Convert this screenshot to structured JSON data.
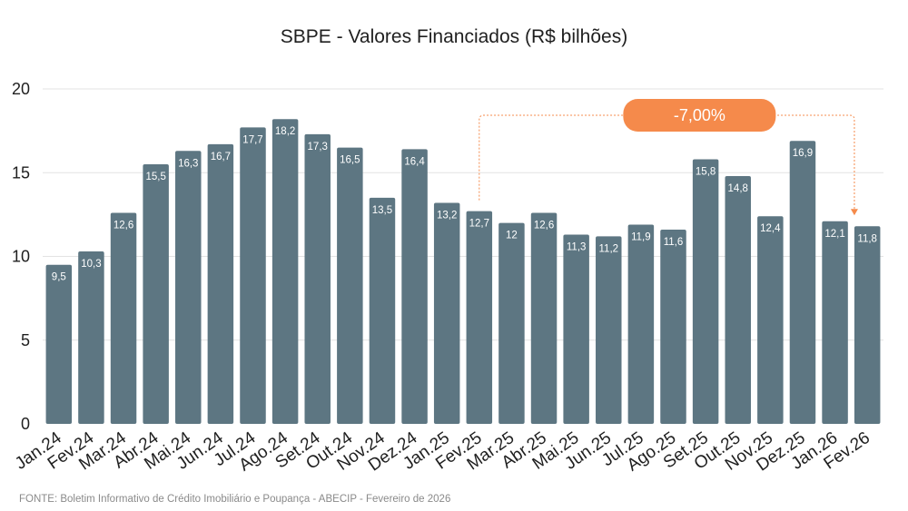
{
  "chart_data": {
    "type": "bar",
    "title": "SBPE - Valores Financiados (R$ bilhões)",
    "xlabel": "",
    "ylabel": "",
    "ylim": [
      0,
      20
    ],
    "yticks": [
      0,
      5,
      10,
      15,
      20
    ],
    "grid": true,
    "categories": [
      "Jan.24",
      "Fev.24",
      "Mar.24",
      "Abr.24",
      "Mai.24",
      "Jun.24",
      "Jul.24",
      "Ago.24",
      "Set.24",
      "Out.24",
      "Nov.24",
      "Dez.24",
      "Jan.25",
      "Fev.25",
      "Mar.25",
      "Abr.25",
      "Mai.25",
      "Jun.25",
      "Jul.25",
      "Ago.25",
      "Set.25",
      "Out.25",
      "Nov.25",
      "Dez.25",
      "Jan.26",
      "Fev.26"
    ],
    "values": [
      9.5,
      10.3,
      12.6,
      15.5,
      16.3,
      16.7,
      17.7,
      18.2,
      17.3,
      16.5,
      13.5,
      16.4,
      13.2,
      12.7,
      12,
      12.6,
      11.3,
      11.2,
      11.9,
      11.6,
      15.8,
      14.8,
      12.4,
      16.9,
      12.1,
      11.8
    ],
    "data_labels": [
      "9,5",
      "10,3",
      "12,6",
      "15,5",
      "16,3",
      "16,7",
      "17,7",
      "18,2",
      "17,3",
      "16,5",
      "13,5",
      "16,4",
      "13,2",
      "12,7",
      "12",
      "12,6",
      "11,3",
      "11,2",
      "11,9",
      "11,6",
      "15,8",
      "14,8",
      "12,4",
      "16,9",
      "12,1",
      "11,8"
    ],
    "bar_color": "#5d7682",
    "annotation": {
      "text": "-7,00%",
      "from_category": "Fev.25",
      "to_category": "Fev.26",
      "color": "#f58a4b"
    },
    "source": "FONTE: Boletim Informativo de Crédito Imobiliário e Poupança - ABECIP - Fevereiro de 2026"
  }
}
